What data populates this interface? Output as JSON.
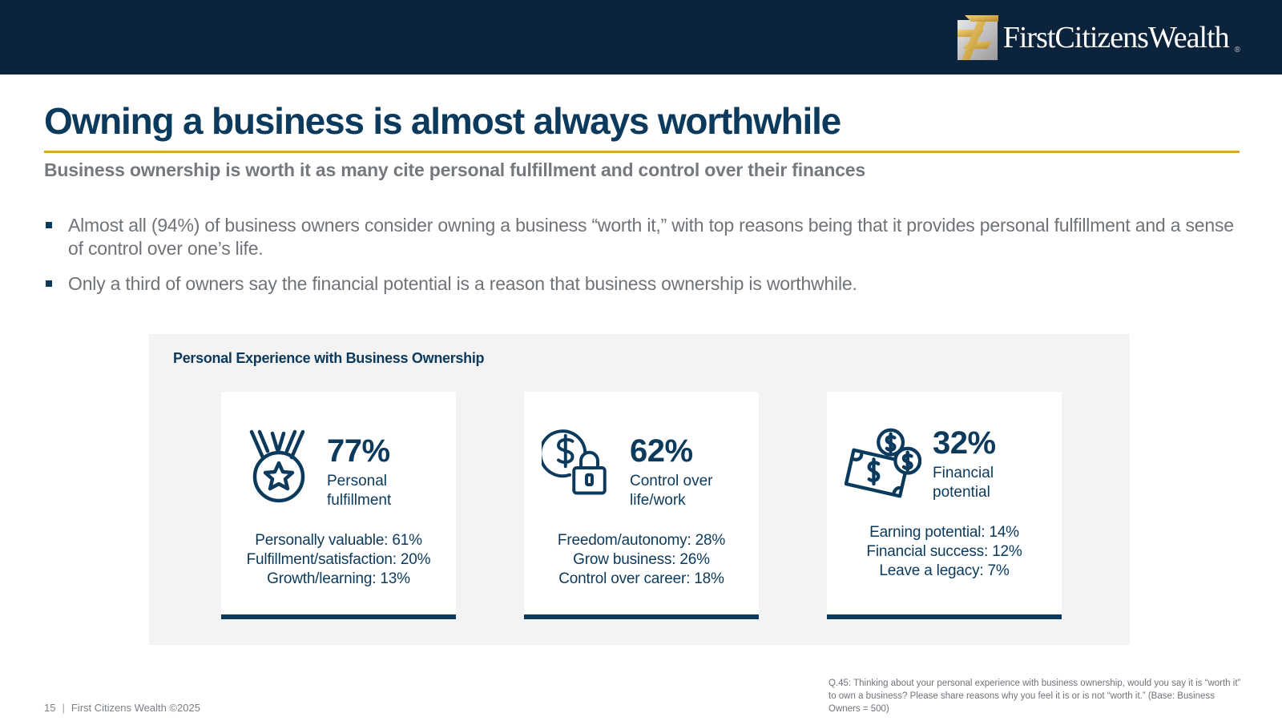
{
  "brand": {
    "name": "First Citizens Wealth",
    "logo_text": "FirstCitizensWealth",
    "registered_mark": "®",
    "colors": {
      "navy": "#0b243b",
      "title_blue": "#0b3a5c",
      "gold": "#d9a72c",
      "gray_text": "#6f7378"
    }
  },
  "slide": {
    "title": "Owning a business is almost always worthwhile",
    "subtitle": "Business ownership is worth it as many cite personal fulfillment and control over their finances",
    "bullets": [
      "Almost all (94%) of business owners consider owning a business “worth it,” with top reasons being that it provides personal fulfillment and a sense of control over one’s life.",
      "Only a third of owners say the financial potential is a reason that business ownership is worthwhile."
    ]
  },
  "panel": {
    "title": "Personal Experience with Business Ownership",
    "cards": [
      {
        "icon": "medal-icon",
        "percent": "77%",
        "label": "Personal fulfillment",
        "details": [
          "Personally valuable: 61%",
          "Fulfillment/satisfaction: 20%",
          "Growth/learning: 13%"
        ]
      },
      {
        "icon": "dollar-lock-icon",
        "percent": "62%",
        "label": "Control over life/work",
        "details": [
          "Freedom/autonomy: 28%",
          "Grow business: 26%",
          "Control over career: 18%"
        ]
      },
      {
        "icon": "money-bills-icon",
        "percent": "32%",
        "label": "Financial potential",
        "details": [
          "Earning potential: 14%",
          "Financial success: 12%",
          "Leave a legacy: 7%"
        ]
      }
    ]
  },
  "footer": {
    "page_number": "15",
    "separator": "|",
    "copyright": "First Citizens Wealth ©2025",
    "source_note": "Q.45:  Thinking about your personal experience with business ownership, would you say it is “worth it” to own a business? Please share reasons why you feel it is or is not “worth it.” (Base: Business Owners = 500)"
  }
}
